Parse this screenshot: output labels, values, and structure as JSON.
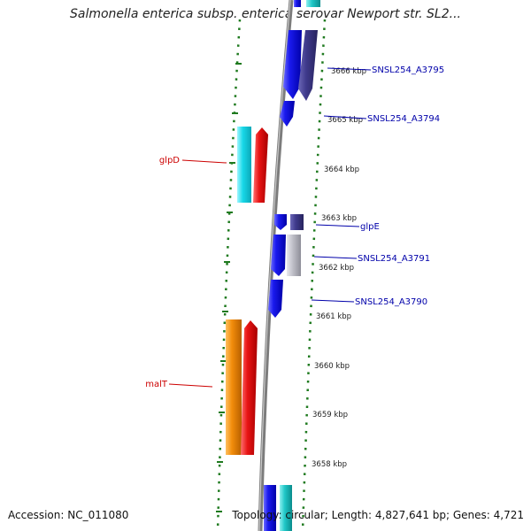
{
  "title": "Salmonella enterica subsp. enterica serovar Newport str. SL2...",
  "footer": {
    "accession": "Accession: NC_011080",
    "topology": "Topology: circular; Length: 4,827,641 bp; Genes: 4,721"
  },
  "ticks": [
    "3666 kbp",
    "3665 kbp",
    "3664 kbp",
    "3663 kbp",
    "3662 kbp",
    "3661 kbp",
    "3660 kbp",
    "3659 kbp",
    "3658 kbp"
  ],
  "gene_labels": {
    "forward_label_color": "#cc0000",
    "reverse_label_color": "#0000aa",
    "items": [
      {
        "text": "SNSL254_A3795",
        "strand": "reverse"
      },
      {
        "text": "SNSL254_A3794",
        "strand": "reverse"
      },
      {
        "text": "glpD",
        "strand": "forward"
      },
      {
        "text": "glpE",
        "strand": "reverse"
      },
      {
        "text": "SNSL254_A3791",
        "strand": "reverse"
      },
      {
        "text": "SNSL254_A3790",
        "strand": "reverse"
      },
      {
        "text": "malT",
        "strand": "forward"
      }
    ]
  },
  "colors": {
    "backbone": "#8a8a8a",
    "dots": "#1f7a1f",
    "blue": "#1010e0",
    "dark_purple": "#3f3a8c",
    "cyan": "#18d8e8",
    "red": "#e01010",
    "orange": "#f28c0a",
    "grey": "#b8b8c0",
    "teal": "#20c8c8"
  }
}
